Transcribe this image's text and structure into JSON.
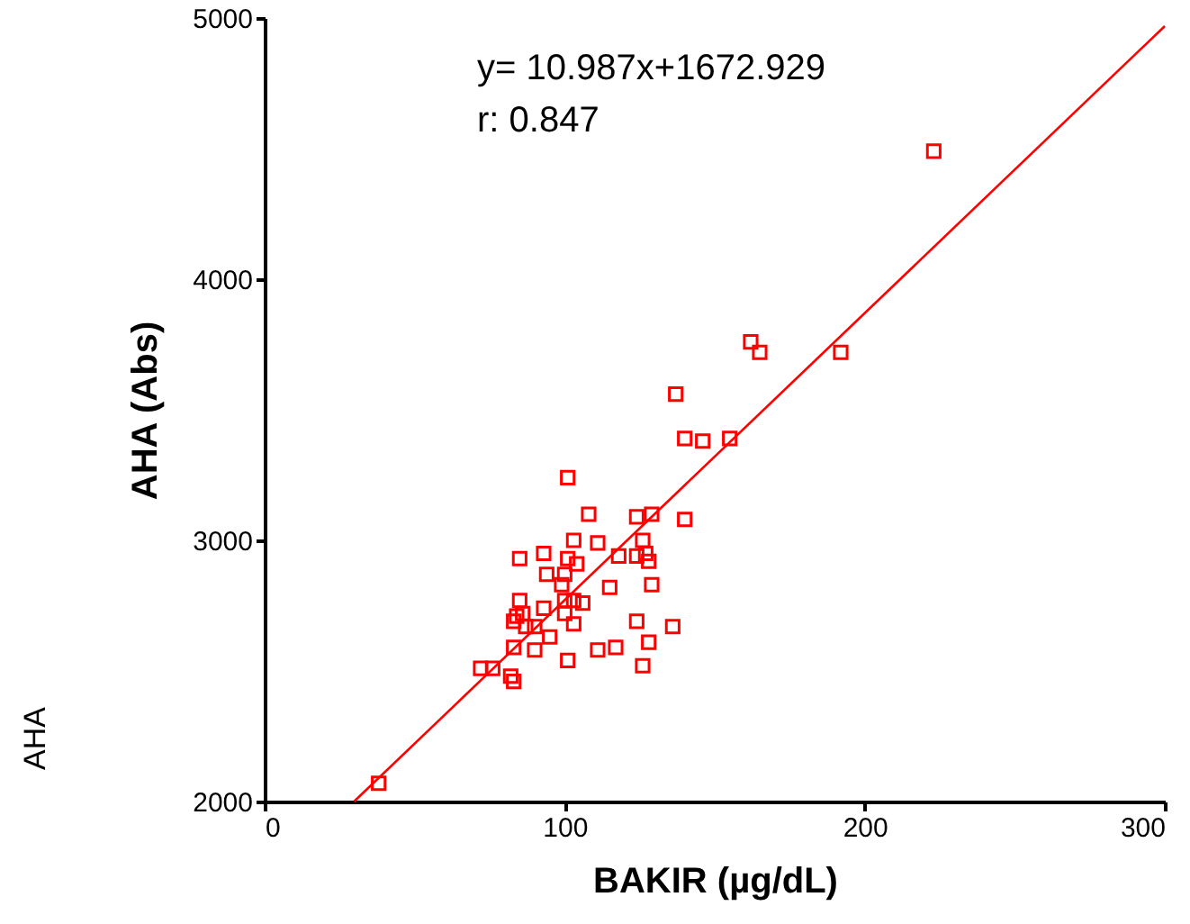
{
  "chart_data": {
    "type": "scatter",
    "xlabel": "BAKIR (µg/dL)",
    "ylabel": "AHA (Abs)",
    "annotations": [
      "y= 10.987x+1672.929",
      "r: 0.847",
      "AHA"
    ],
    "xlim": [
      0,
      300
    ],
    "xticks": [
      0,
      100,
      200,
      300
    ],
    "ylim": [
      2000,
      5000
    ],
    "yticks": [
      2000,
      3000,
      4000,
      5000
    ],
    "grid": false,
    "series": [
      {
        "marker": "square",
        "color": "#ff0000",
        "x": [
          223,
          162,
          165,
          192,
          137,
          140,
          146,
          155,
          101,
          108,
          124,
          129,
          140,
          103,
          111,
          126,
          85,
          93,
          101,
          104,
          118,
          124,
          127,
          128,
          94,
          100,
          99,
          115,
          129,
          85,
          93,
          100,
          103,
          106,
          86,
          84,
          100,
          83,
          87,
          90,
          103,
          124,
          136,
          95,
          83,
          90,
          111,
          117,
          128,
          101,
          126,
          72,
          76,
          82,
          83,
          38
        ],
        "values": [
          4490,
          3760,
          3720,
          3720,
          3560,
          3390,
          3380,
          3390,
          3240,
          3100,
          3090,
          3100,
          3080,
          3000,
          2990,
          3000,
          2930,
          2950,
          2930,
          2910,
          2940,
          2940,
          2950,
          2920,
          2870,
          2870,
          2830,
          2820,
          2830,
          2770,
          2740,
          2770,
          2770,
          2760,
          2720,
          2710,
          2720,
          2690,
          2670,
          2670,
          2680,
          2690,
          2670,
          2630,
          2590,
          2580,
          2580,
          2590,
          2610,
          2540,
          2520,
          2510,
          2510,
          2480,
          2460,
          2070
        ]
      },
      {
        "type": "line",
        "color": "#ff0000",
        "x": [
          29.8,
          300
        ],
        "values": [
          2000,
          4969
        ]
      }
    ]
  }
}
